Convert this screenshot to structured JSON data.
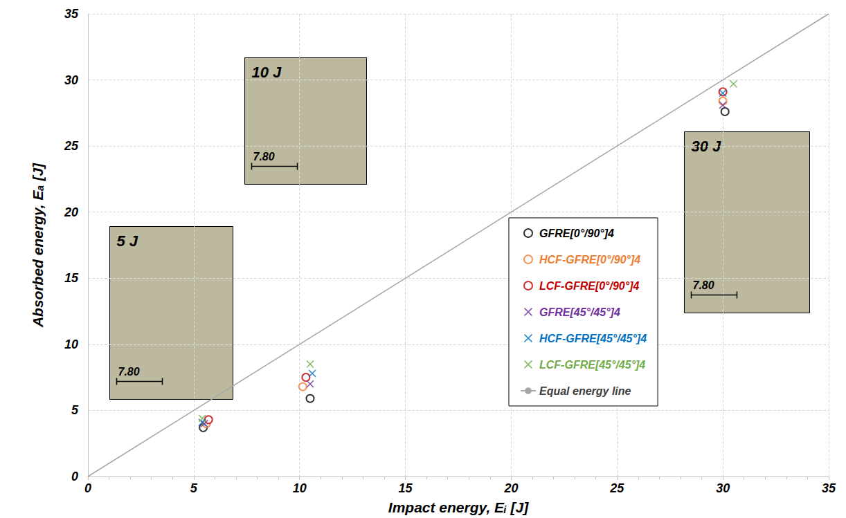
{
  "chart_data": {
    "type": "scatter",
    "xlabel": "Impact energy, Eᵢ [J]",
    "ylabel": "Absorbed energy, Eₐ [J]",
    "xlim": [
      0,
      35
    ],
    "xticks": [
      0,
      5,
      10,
      15,
      20,
      25,
      30,
      35
    ],
    "ylim": [
      0,
      35
    ],
    "yticks": [
      0,
      5,
      10,
      15,
      20,
      25,
      30,
      35
    ],
    "grid": true,
    "legend": "lower right",
    "series": [
      {
        "name": "GFRE[0°/90°]4",
        "color": "#000000",
        "marker": "circle",
        "x": [
          5.45,
          10.5,
          30.1
        ],
        "values": [
          3.7,
          5.9,
          27.6
        ]
      },
      {
        "name": "HCF-GFRE[0°/90°]4",
        "color": "#ed7d31",
        "marker": "circle",
        "x": [
          5.6,
          10.15,
          30.0
        ],
        "values": [
          4.0,
          6.8,
          28.4
        ]
      },
      {
        "name": "LCF-GFRE[0°/90°]4",
        "color": "#c00000",
        "marker": "circle",
        "x": [
          5.7,
          10.3,
          30.0
        ],
        "values": [
          4.3,
          7.5,
          29.1
        ]
      },
      {
        "name": "GFRE[45°/45°]4",
        "color": "#7030a0",
        "marker": "x",
        "x": [
          5.5,
          10.5,
          30.0
        ],
        "values": [
          4.0,
          7.0,
          28.1
        ]
      },
      {
        "name": "HCF-GFRE[45°/45°]4",
        "color": "#0070c0",
        "marker": "x",
        "x": [
          5.4,
          10.6,
          30.0
        ],
        "values": [
          4.1,
          7.8,
          29.0
        ]
      },
      {
        "name": "LCF-GFRE[45°/45°]4",
        "color": "#70ad47",
        "marker": "x",
        "x": [
          5.4,
          10.5,
          30.5
        ],
        "values": [
          4.4,
          8.5,
          29.7
        ]
      },
      {
        "name": "Equal energy line",
        "type": "line",
        "color": "#a6a6a6",
        "line_style": "solid",
        "x": [
          0,
          35
        ],
        "values": [
          0,
          35
        ]
      }
    ],
    "annotations": [
      {
        "text": "5 J",
        "scale_label": "7.80"
      },
      {
        "text": "10 J",
        "scale_label": "7.80"
      },
      {
        "text": "30 J",
        "scale_label": "7.80"
      }
    ]
  }
}
